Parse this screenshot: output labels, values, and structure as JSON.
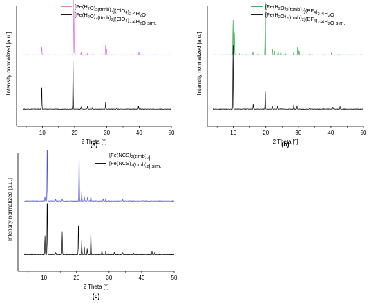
{
  "chart_data": [
    {
      "type": "line",
      "panel_label": "(a)",
      "xlabel": "2 Theta [°]",
      "ylabel": "Intensity normalized [a.u.]",
      "xlim": [
        2,
        50
      ],
      "xticks": [
        10,
        20,
        30,
        40,
        50
      ],
      "grid": false,
      "legend_position": "top-right",
      "series": [
        {
          "name": "[Fe(H2O)2(ttmb)2](ClO4)2·4H2O",
          "legend_parts": [
            [
              "[Fe(H",
              ""
            ],
            [
              "2",
              "sub"
            ],
            [
              "O)",
              ""
            ],
            [
              "2",
              "sub"
            ],
            [
              "(ttmb)",
              ""
            ],
            [
              "2",
              "sub"
            ],
            [
              "](ClO",
              ""
            ],
            [
              "4",
              "sub"
            ],
            [
              ")",
              ""
            ],
            [
              "2",
              "sub"
            ],
            [
              "·4H",
              ""
            ],
            [
              "2",
              "sub"
            ],
            [
              "O",
              ""
            ]
          ],
          "color": "#e46be2",
          "offset": 1.08,
          "peaks": [
            [
              9.8,
              0.12
            ],
            [
              19.6,
              0.72
            ],
            [
              20.0,
              0.58
            ],
            [
              22.0,
              0.03
            ],
            [
              24.0,
              0.02
            ],
            [
              25.6,
              0.015
            ],
            [
              29.6,
              0.13
            ],
            [
              29.9,
              0.08
            ],
            [
              39.9,
              0.04
            ]
          ]
        },
        {
          "name": "[Fe(H2O)2(ttmb)2](ClO4)2·4H2O sim.",
          "legend_parts": [
            [
              "[Fe(H",
              ""
            ],
            [
              "2",
              "sub"
            ],
            [
              "O)",
              ""
            ],
            [
              "2",
              "sub"
            ],
            [
              "(ttmb)",
              ""
            ],
            [
              "2",
              "sub"
            ],
            [
              "](ClO",
              ""
            ],
            [
              "4",
              "sub"
            ],
            [
              ")",
              ""
            ],
            [
              "2",
              "sub"
            ],
            [
              "·4H",
              ""
            ],
            [
              "2",
              "sub"
            ],
            [
              "O sim.",
              ""
            ]
          ],
          "color": "#000000",
          "offset": 0.0,
          "peaks": [
            [
              9.8,
              0.34
            ],
            [
              19.5,
              0.66
            ],
            [
              22.0,
              0.03
            ],
            [
              24.0,
              0.04
            ],
            [
              25.6,
              0.03
            ],
            [
              29.6,
              0.09
            ],
            [
              33.0,
              0.015
            ],
            [
              39.8,
              0.05
            ],
            [
              40.3,
              0.02
            ]
          ]
        }
      ]
    },
    {
      "type": "line",
      "panel_label": "(b)",
      "xlabel": "2 Theta [°]",
      "ylabel": "Intensity normalized [a.u.]",
      "xlim": [
        2,
        50
      ],
      "xticks": [
        10,
        20,
        30,
        40,
        50
      ],
      "grid": false,
      "legend_position": "top-right",
      "series": [
        {
          "name": "[Fe(H2O)2(ttmb)2](BF4)2·4H2O",
          "legend_parts": [
            [
              "[Fe(H",
              ""
            ],
            [
              "2",
              "sub"
            ],
            [
              "O)",
              ""
            ],
            [
              "2",
              "sub"
            ],
            [
              "(ttmb)",
              ""
            ],
            [
              "2",
              "sub"
            ],
            [
              "](BF",
              ""
            ],
            [
              "4",
              "sub"
            ],
            [
              ")",
              ""
            ],
            [
              "2",
              "sub"
            ],
            [
              "·4H",
              ""
            ],
            [
              "2",
              "sub"
            ],
            [
              "O",
              ""
            ]
          ],
          "color": "#33a84a",
          "offset": 0.92,
          "peaks": [
            [
              9.9,
              0.48
            ],
            [
              10.3,
              0.3
            ],
            [
              12.0,
              0.02
            ],
            [
              16.0,
              0.03
            ],
            [
              17.6,
              0.02
            ],
            [
              19.8,
              0.84
            ],
            [
              22.0,
              0.08
            ],
            [
              22.6,
              0.06
            ],
            [
              23.8,
              0.05
            ],
            [
              24.6,
              0.04
            ],
            [
              26.0,
              0.02
            ],
            [
              28.6,
              0.04
            ],
            [
              29.8,
              0.12
            ],
            [
              30.2,
              0.06
            ],
            [
              33.5,
              0.02
            ],
            [
              40.2,
              0.03
            ]
          ]
        },
        {
          "name": "[Fe(H2O)2(ttmb)2](BF4)2·4H2O sim.",
          "legend_parts": [
            [
              "[Fe(H",
              ""
            ],
            [
              "2",
              "sub"
            ],
            [
              "O)",
              ""
            ],
            [
              "2",
              "sub"
            ],
            [
              "(ttmb)",
              ""
            ],
            [
              "2",
              "sub"
            ],
            [
              "](BF",
              ""
            ],
            [
              "4",
              "sub"
            ],
            [
              ")",
              ""
            ],
            [
              "2",
              "sub"
            ],
            [
              "·4H",
              ""
            ],
            [
              "2",
              "sub"
            ],
            [
              "O sim.",
              ""
            ]
          ],
          "color": "#000000",
          "offset": 0.0,
          "peaks": [
            [
              9.9,
              0.88
            ],
            [
              16.1,
              0.07
            ],
            [
              19.8,
              0.28
            ],
            [
              22.0,
              0.04
            ],
            [
              23.6,
              0.04
            ],
            [
              24.6,
              0.02
            ],
            [
              28.6,
              0.07
            ],
            [
              29.6,
              0.05
            ],
            [
              33.5,
              0.02
            ],
            [
              37.6,
              0.02
            ],
            [
              40.6,
              0.03
            ],
            [
              42.8,
              0.04
            ]
          ]
        }
      ]
    },
    {
      "type": "line",
      "panel_label": "(c)",
      "xlabel": "2 Theta [°]",
      "ylabel": "Intensity normalized [a.u.]",
      "xlim": [
        2,
        50
      ],
      "xticks": [
        10,
        20,
        30,
        40,
        50
      ],
      "grid": false,
      "legend_position": "top-right",
      "series": [
        {
          "name": "[Fe(NCS)2(ttmb)2]",
          "legend_parts": [
            [
              "[Fe(NCS)",
              ""
            ],
            [
              "2",
              "sub"
            ],
            [
              "(ttmb)",
              ""
            ],
            [
              "2",
              "sub"
            ],
            [
              "]",
              ""
            ]
          ],
          "color": "#4f4fd6",
          "offset": 0.84,
          "peaks": [
            [
              10.3,
              0.06
            ],
            [
              11.0,
              0.82
            ],
            [
              13.6,
              0.02
            ],
            [
              15.6,
              0.03
            ],
            [
              20.8,
              0.72
            ],
            [
              21.6,
              0.13
            ],
            [
              22.4,
              0.06
            ],
            [
              23.4,
              0.05
            ],
            [
              24.4,
              0.08
            ],
            [
              28.2,
              0.03
            ],
            [
              29.0,
              0.03
            ],
            [
              34.2,
              0.02
            ]
          ]
        },
        {
          "name": "[Fe(NCS)2(ttmb)2] sim.",
          "legend_parts": [
            [
              "[Fe(NCS)",
              ""
            ],
            [
              "2",
              "sub"
            ],
            [
              "(ttmb)",
              ""
            ],
            [
              "2",
              "sub"
            ],
            [
              "] sim.",
              ""
            ]
          ],
          "color": "#000000",
          "offset": 0.0,
          "peaks": [
            [
              10.3,
              0.26
            ],
            [
              11.0,
              0.82
            ],
            [
              13.6,
              0.03
            ],
            [
              15.6,
              0.3
            ],
            [
              20.6,
              0.46
            ],
            [
              21.6,
              0.2
            ],
            [
              22.4,
              0.1
            ],
            [
              23.3,
              0.08
            ],
            [
              24.4,
              0.35
            ],
            [
              27.8,
              0.06
            ],
            [
              29.0,
              0.05
            ],
            [
              31.6,
              0.03
            ],
            [
              34.2,
              0.03
            ],
            [
              37.5,
              0.02
            ],
            [
              43.2,
              0.05
            ],
            [
              44.0,
              0.03
            ]
          ]
        }
      ]
    }
  ]
}
